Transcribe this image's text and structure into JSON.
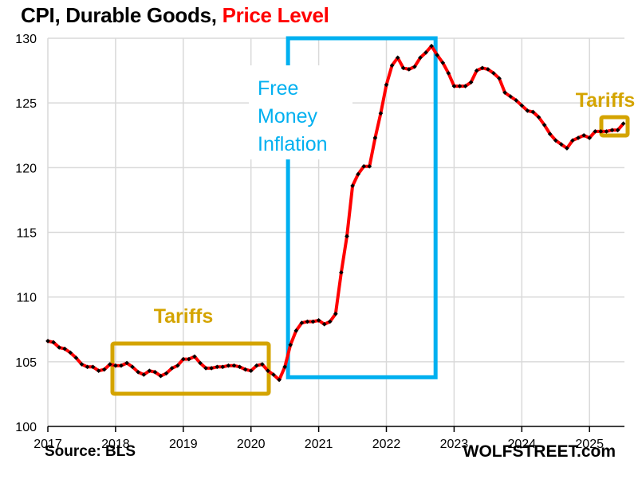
{
  "title": {
    "main": "CPI, Durable Goods, ",
    "accent": "Price Level",
    "accent_color": "#ff0000"
  },
  "footer": {
    "source": "Source: BLS",
    "brand": "WOLFSTREET.com"
  },
  "annotations": [
    {
      "label": "Tariffs",
      "color": "#d4a400",
      "span": [
        "2018-01",
        "2020-05"
      ],
      "yrange": [
        102.6,
        106.4
      ]
    },
    {
      "label": "Free Money Inflation",
      "lines": [
        "Free",
        "Money",
        "Inflation"
      ],
      "color": "#00b0f0",
      "span": [
        "2020-07",
        "2022-10"
      ],
      "yrange": [
        103.8,
        130
      ]
    },
    {
      "label": "Tariffs",
      "color": "#d4a400",
      "span": [
        "2025-03",
        "2025-07"
      ],
      "yrange": [
        122.6,
        123.8
      ]
    }
  ],
  "chart_data": {
    "type": "line",
    "title": "CPI, Durable Goods, Price Level",
    "xlabel": "",
    "ylabel": "",
    "ylim": [
      100,
      130
    ],
    "yticks": [
      100,
      105,
      110,
      115,
      120,
      125,
      130
    ],
    "xticks": [
      "2017",
      "2018",
      "2019",
      "2020",
      "2021",
      "2022",
      "2023",
      "2024",
      "2025"
    ],
    "xlim": [
      "2017-01",
      "2025-07"
    ],
    "grid": true,
    "legend": "none",
    "series": [
      {
        "name": "CPI Durable Goods",
        "color": "#ff0000",
        "marker_color": "#000000",
        "start": "2017-01",
        "frequency": "monthly",
        "values": [
          106.6,
          106.5,
          106.1,
          106.0,
          105.7,
          105.3,
          104.8,
          104.6,
          104.6,
          104.3,
          104.4,
          104.8,
          104.7,
          104.7,
          104.9,
          104.6,
          104.2,
          104.0,
          104.3,
          104.2,
          103.9,
          104.1,
          104.5,
          104.7,
          105.2,
          105.2,
          105.4,
          104.9,
          104.5,
          104.5,
          104.6,
          104.6,
          104.7,
          104.7,
          104.6,
          104.4,
          104.3,
          104.7,
          104.8,
          104.3,
          104.0,
          103.6,
          104.6,
          106.3,
          107.4,
          108.0,
          108.1,
          108.1,
          108.2,
          107.9,
          108.1,
          108.7,
          111.9,
          114.7,
          118.6,
          119.5,
          120.1,
          120.1,
          122.3,
          124.2,
          126.4,
          127.9,
          128.5,
          127.7,
          127.6,
          127.8,
          128.5,
          128.9,
          129.4,
          128.7,
          128.1,
          127.3,
          126.3,
          126.3,
          126.3,
          126.6,
          127.5,
          127.7,
          127.6,
          127.3,
          126.9,
          125.8,
          125.5,
          125.2,
          124.8,
          124.4,
          124.3,
          123.9,
          123.3,
          122.6,
          122.1,
          121.8,
          121.5,
          122.1,
          122.3,
          122.5,
          122.3,
          122.8,
          122.8,
          122.8,
          122.9,
          122.9,
          123.4
        ]
      }
    ],
    "annotations": [
      "Tariffs",
      "Free Money Inflation",
      "Tariffs"
    ],
    "source": "Source: BLS"
  }
}
